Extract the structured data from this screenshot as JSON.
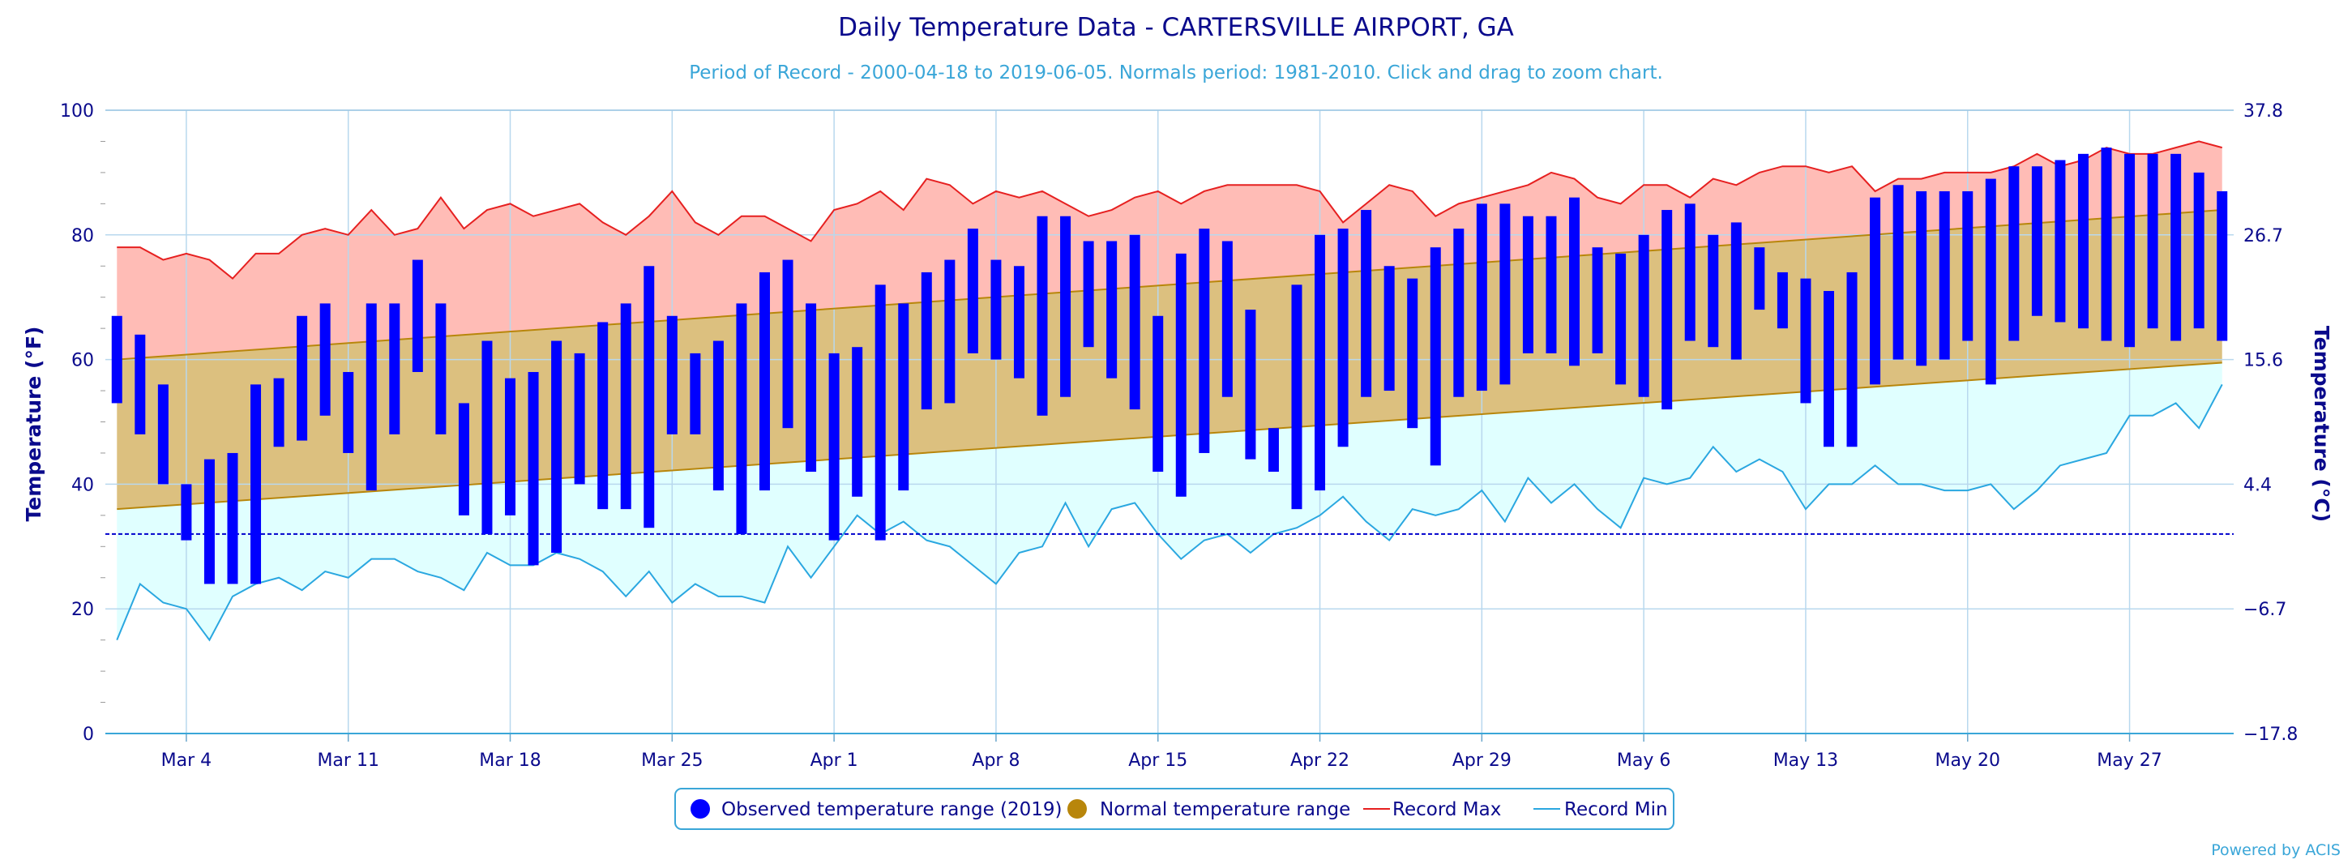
{
  "chart_data": {
    "type": "bar",
    "title": "Daily Temperature Data - CARTERSVILLE AIRPORT, GA",
    "subtitle": "Period of Record - 2000-04-18 to 2019-06-05. Normals period: 1981-2010. Click and drag to zoom chart.",
    "ylabel_left": "Temperature (°F)",
    "ylabel_right": "Temperature (°C)",
    "ylim": [
      0,
      100
    ],
    "x_start": "Mar 1",
    "num_days": 92,
    "y_ticks_left": [
      "0",
      "20",
      "40",
      "60",
      "80",
      "100"
    ],
    "y_ticks_right": [
      "−17.8",
      "−6.7",
      "4.4",
      "15.6",
      "26.7",
      "37.8"
    ],
    "x_ticks": [
      {
        "day": 3,
        "label": "Mar 4"
      },
      {
        "day": 10,
        "label": "Mar 11"
      },
      {
        "day": 17,
        "label": "Mar 18"
      },
      {
        "day": 24,
        "label": "Mar 25"
      },
      {
        "day": 31,
        "label": "Apr 1"
      },
      {
        "day": 38,
        "label": "Apr 8"
      },
      {
        "day": 45,
        "label": "Apr 15"
      },
      {
        "day": 52,
        "label": "Apr 22"
      },
      {
        "day": 59,
        "label": "Apr 29"
      },
      {
        "day": 66,
        "label": "May 6"
      },
      {
        "day": 73,
        "label": "May 13"
      },
      {
        "day": 80,
        "label": "May 20"
      },
      {
        "day": 87,
        "label": "May 27"
      }
    ],
    "freezing_line": 32,
    "observed": [
      [
        53,
        67
      ],
      [
        48,
        64
      ],
      [
        40,
        56
      ],
      [
        31,
        40
      ],
      [
        24,
        44
      ],
      [
        24,
        45
      ],
      [
        24,
        56
      ],
      [
        46,
        57
      ],
      [
        47,
        67
      ],
      [
        51,
        69
      ],
      [
        45,
        58
      ],
      [
        39,
        69
      ],
      [
        48,
        69
      ],
      [
        58,
        76
      ],
      [
        48,
        69
      ],
      [
        35,
        53
      ],
      [
        32,
        63
      ],
      [
        35,
        57
      ],
      [
        27,
        58
      ],
      [
        29,
        63
      ],
      [
        40,
        61
      ],
      [
        36,
        66
      ],
      [
        36,
        69
      ],
      [
        33,
        75
      ],
      [
        48,
        67
      ],
      [
        48,
        61
      ],
      [
        39,
        63
      ],
      [
        32,
        69
      ],
      [
        39,
        74
      ],
      [
        49,
        76
      ],
      [
        42,
        69
      ],
      [
        31,
        61
      ],
      [
        38,
        62
      ],
      [
        31,
        72
      ],
      [
        39,
        69
      ],
      [
        52,
        74
      ],
      [
        53,
        76
      ],
      [
        61,
        81
      ],
      [
        60,
        76
      ],
      [
        57,
        75
      ],
      [
        51,
        83
      ],
      [
        54,
        83
      ],
      [
        62,
        79
      ],
      [
        57,
        79
      ],
      [
        52,
        80
      ],
      [
        42,
        67
      ],
      [
        38,
        77
      ],
      [
        45,
        81
      ],
      [
        54,
        79
      ],
      [
        44,
        68
      ],
      [
        42,
        49
      ],
      [
        36,
        72
      ],
      [
        39,
        80
      ],
      [
        46,
        81
      ],
      [
        54,
        84
      ],
      [
        55,
        75
      ],
      [
        49,
        73
      ],
      [
        43,
        78
      ],
      [
        54,
        81
      ],
      [
        55,
        85
      ],
      [
        56,
        85
      ],
      [
        61,
        83
      ],
      [
        61,
        83
      ],
      [
        59,
        86
      ],
      [
        61,
        78
      ],
      [
        56,
        77
      ],
      [
        54,
        80
      ],
      [
        52,
        84
      ],
      [
        63,
        85
      ],
      [
        62,
        80
      ],
      [
        60,
        82
      ],
      [
        68,
        78
      ],
      [
        65,
        74
      ],
      [
        53,
        73
      ],
      [
        46,
        71
      ],
      [
        46,
        74
      ],
      [
        56,
        86
      ],
      [
        60,
        88
      ],
      [
        59,
        87
      ],
      [
        60,
        87
      ],
      [
        63,
        87
      ],
      [
        56,
        89
      ],
      [
        63,
        91
      ],
      [
        67,
        91
      ],
      [
        66,
        92
      ],
      [
        65,
        93
      ],
      [
        63,
        94
      ],
      [
        62,
        93
      ],
      [
        65,
        93
      ],
      [
        63,
        93
      ],
      [
        65,
        90
      ],
      [
        63,
        87
      ]
    ],
    "normal_low": [
      36,
      59.5
    ],
    "normal_high": [
      60,
      84
    ],
    "series": [
      {
        "name": "Record Max",
        "values": [
          78,
          78,
          76,
          77,
          76,
          73,
          77,
          77,
          80,
          81,
          80,
          84,
          80,
          81,
          86,
          81,
          84,
          85,
          83,
          84,
          85,
          82,
          80,
          83,
          87,
          82,
          80,
          83,
          83,
          81,
          79,
          84,
          85,
          87,
          84,
          89,
          88,
          85,
          87,
          86,
          87,
          85,
          83,
          84,
          86,
          87,
          85,
          87,
          88,
          88,
          88,
          88,
          87,
          82,
          85,
          88,
          87,
          83,
          85,
          86,
          87,
          88,
          90,
          89,
          86,
          85,
          88,
          88,
          86,
          89,
          88,
          90,
          91,
          91,
          90,
          91,
          87,
          89,
          89,
          90,
          90,
          90,
          91,
          93,
          91,
          92,
          94,
          93,
          93,
          94,
          95,
          94
        ]
      },
      {
        "name": "Record Min",
        "values": [
          15,
          24,
          21,
          20,
          15,
          22,
          24,
          25,
          23,
          26,
          25,
          28,
          28,
          26,
          25,
          23,
          29,
          27,
          27,
          29,
          28,
          26,
          22,
          26,
          21,
          24,
          22,
          22,
          21,
          30,
          25,
          30,
          35,
          32,
          34,
          31,
          30,
          27,
          24,
          29,
          30,
          37,
          30,
          36,
          37,
          32,
          28,
          31,
          32,
          29,
          32,
          33,
          35,
          38,
          34,
          31,
          36,
          35,
          36,
          39,
          34,
          41,
          37,
          40,
          36,
          33,
          41,
          40,
          41,
          46,
          42,
          44,
          42,
          36,
          40,
          40,
          43,
          40,
          40,
          39,
          39,
          40,
          36,
          39,
          43,
          44,
          45,
          51,
          51,
          53,
          49,
          56
        ]
      }
    ],
    "legend": [
      {
        "name": "Observed temperature range (2019)",
        "color": "#0000ff",
        "marker": "circle"
      },
      {
        "name": "Normal temperature range",
        "color": "#b8860b",
        "marker": "circle"
      },
      {
        "name": "Record Max",
        "color": "#e62020",
        "marker": "line"
      },
      {
        "name": "Record Min",
        "color": "#2aa7e0",
        "marker": "line"
      }
    ],
    "legend_position": "bottom-center",
    "grid": true,
    "credit": "Powered by ACIS"
  },
  "colors": {
    "observed": "#0000ff",
    "normal_fill": "#dcc07f",
    "normal_line": "#b8860b",
    "record_max_line": "#e62020",
    "record_max_fill": "#ffbcb6",
    "record_min_line": "#2aa7e0",
    "record_min_fill": "#e0ffff",
    "freezing": "#0000cc",
    "grid": "#b8d8ee",
    "text": "#0a0a8c"
  }
}
